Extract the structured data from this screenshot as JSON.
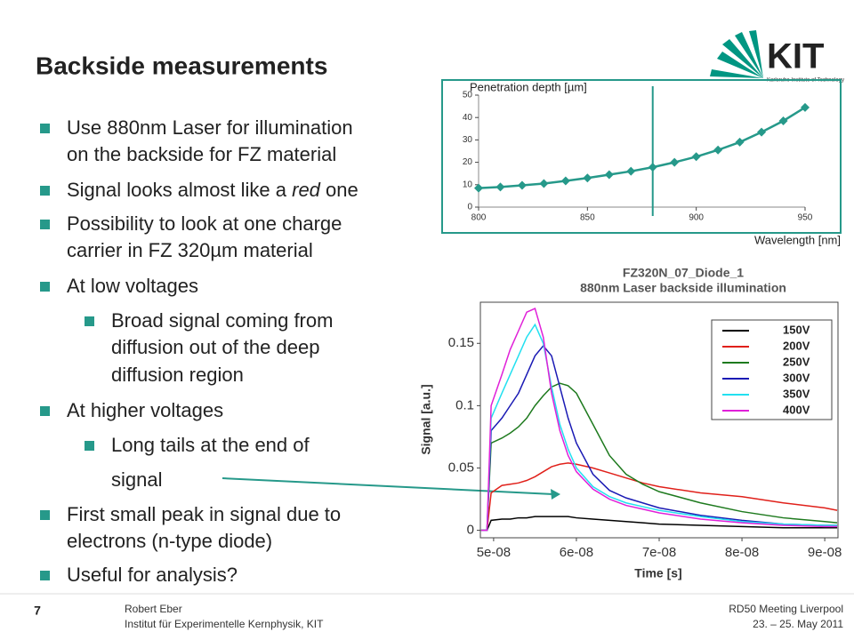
{
  "title": "Backside measurements",
  "logo": {
    "name": "KIT",
    "subtitle": "Karlsruhe Institute of Technology"
  },
  "bullets": [
    {
      "level": 1,
      "lines": [
        "Use 880nm Laser for illumination",
        "on the backside for FZ material"
      ]
    },
    {
      "level": 1,
      "lines": [
        [
          "Signal looks almost like a ",
          "red",
          " one"
        ]
      ]
    },
    {
      "level": 1,
      "lines": [
        "Possibility to look at one charge",
        "carrier in FZ 320µm material"
      ]
    },
    {
      "level": 1,
      "lines": [
        "At low voltages"
      ]
    },
    {
      "level": 2,
      "lines": [
        "Broad signal coming from",
        "diffusion out of the deep",
        "diffusion region"
      ]
    },
    {
      "level": 1,
      "lines": [
        "At higher voltages"
      ]
    },
    {
      "level": 2,
      "lines": [
        "Long tails at the end of",
        "  signal"
      ]
    },
    {
      "level": 1,
      "lines": [
        "First small peak in signal due to",
        "electrons (n-type diode)"
      ]
    },
    {
      "level": 1,
      "lines": [
        "Useful for analysis?"
      ]
    }
  ],
  "footer": {
    "page": "7",
    "author": "Robert Eber",
    "institute": "Institut für Experimentelle Kernphysik, KIT",
    "event": "RD50 Meeting Liverpool",
    "date": "23. – 25. May 2011"
  },
  "chart_data": [
    {
      "type": "line",
      "y_label": "Penetration depth [µm]",
      "x_label": "Wavelength [nm]",
      "color": "#26998a",
      "vline": 880,
      "x": [
        800,
        810,
        820,
        830,
        840,
        850,
        860,
        870,
        880,
        890,
        900,
        910,
        920,
        930,
        940,
        950
      ],
      "values": [
        8.5,
        9,
        9.7,
        10.5,
        11.7,
        13,
        14.5,
        16,
        17.8,
        20,
        22.5,
        25.5,
        29,
        33.5,
        38.5,
        44.5
      ],
      "xlim": [
        800,
        950
      ],
      "xticks": [
        800,
        850,
        900,
        950
      ],
      "ylim": [
        0,
        50
      ],
      "yticks": [
        0,
        10,
        20,
        30,
        40,
        50
      ],
      "grid": false
    },
    {
      "type": "line",
      "title": "FZ320N_07_Diode_1",
      "subtitle": "880nm Laser backside illumination",
      "y_label": "Signal [a.u.]",
      "x_label": "Time [s]",
      "x": [
        4.85e-08,
        4.92e-08,
        4.97e-08,
        5.1e-08,
        5.2e-08,
        5.3e-08,
        5.4e-08,
        5.5e-08,
        5.6e-08,
        5.7e-08,
        5.8e-08,
        5.9e-08,
        6e-08,
        6.2e-08,
        6.4e-08,
        6.6e-08,
        6.8e-08,
        7e-08,
        7.5e-08,
        8e-08,
        8.5e-08,
        9e-08,
        9.15e-08
      ],
      "series": [
        {
          "name": "150V",
          "color": "#000000",
          "values": [
            0,
            0,
            0.008,
            0.009,
            0.009,
            0.01,
            0.01,
            0.011,
            0.011,
            0.011,
            0.011,
            0.011,
            0.01,
            0.009,
            0.008,
            0.007,
            0.006,
            0.005,
            0.004,
            0.003,
            0.002,
            0.002,
            0.002
          ]
        },
        {
          "name": "200V",
          "color": "#e0201a",
          "values": [
            0,
            0,
            0.03,
            0.036,
            0.037,
            0.038,
            0.04,
            0.043,
            0.047,
            0.051,
            0.053,
            0.054,
            0.053,
            0.05,
            0.046,
            0.042,
            0.038,
            0.035,
            0.03,
            0.027,
            0.022,
            0.018,
            0.016
          ]
        },
        {
          "name": "250V",
          "color": "#1e7a1e",
          "values": [
            0,
            0,
            0.07,
            0.074,
            0.078,
            0.083,
            0.09,
            0.1,
            0.108,
            0.115,
            0.118,
            0.116,
            0.11,
            0.085,
            0.06,
            0.045,
            0.037,
            0.031,
            0.022,
            0.015,
            0.01,
            0.007,
            0.006
          ]
        },
        {
          "name": "300V",
          "color": "#1a1ab4",
          "values": [
            0,
            0,
            0.08,
            0.09,
            0.1,
            0.11,
            0.125,
            0.14,
            0.148,
            0.14,
            0.115,
            0.09,
            0.07,
            0.045,
            0.032,
            0.026,
            0.022,
            0.018,
            0.012,
            0.008,
            0.005,
            0.004,
            0.004
          ]
        },
        {
          "name": "350V",
          "color": "#22e0f0",
          "values": [
            0,
            0,
            0.09,
            0.11,
            0.125,
            0.14,
            0.155,
            0.165,
            0.15,
            0.115,
            0.085,
            0.065,
            0.05,
            0.035,
            0.027,
            0.022,
            0.019,
            0.016,
            0.011,
            0.007,
            0.005,
            0.004,
            0.004
          ]
        },
        {
          "name": "400V",
          "color": "#e020d8",
          "values": [
            0,
            0,
            0.1,
            0.125,
            0.145,
            0.16,
            0.175,
            0.178,
            0.155,
            0.11,
            0.08,
            0.06,
            0.047,
            0.033,
            0.025,
            0.02,
            0.017,
            0.014,
            0.009,
            0.006,
            0.004,
            0.003,
            0.003
          ]
        }
      ],
      "xlim": [
        4.84e-08,
        9.16e-08
      ],
      "xticks": [
        {
          "value": 5e-08,
          "label": "5e-08"
        },
        {
          "value": 6e-08,
          "label": "6e-08"
        },
        {
          "value": 7e-08,
          "label": "7e-08"
        },
        {
          "value": 8e-08,
          "label": "8e-08"
        },
        {
          "value": 9e-08,
          "label": "9e-08"
        }
      ],
      "ylim": [
        -0.006,
        0.183
      ],
      "yticks": [
        0,
        0.05,
        0.1,
        0.15
      ],
      "legend": "upper right",
      "grid": false
    }
  ]
}
